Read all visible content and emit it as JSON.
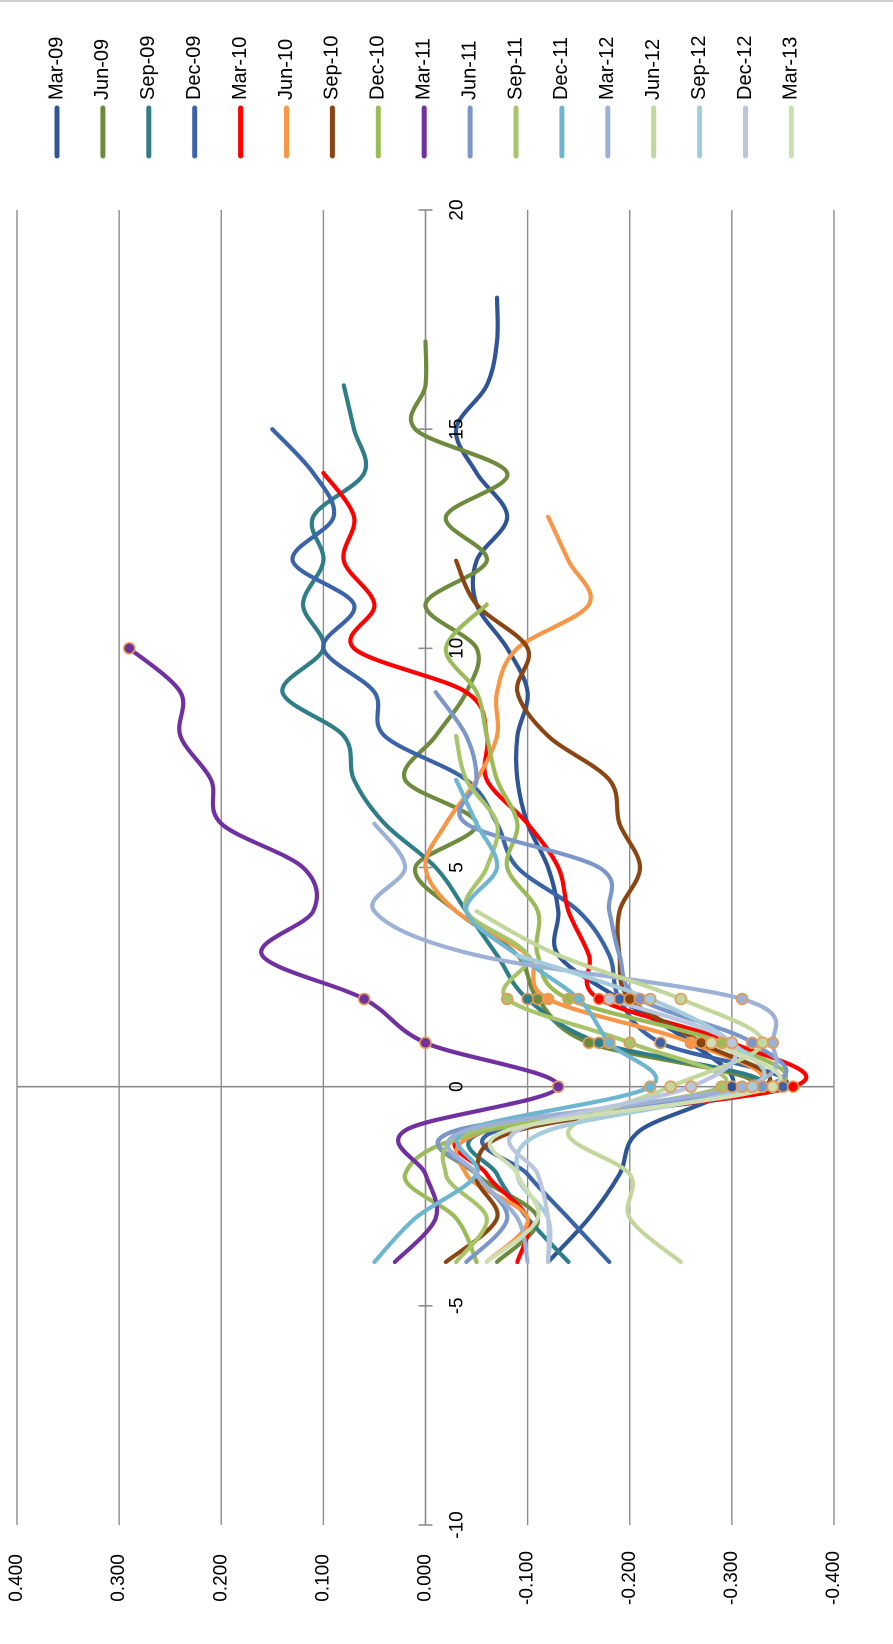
{
  "chart_data": {
    "type": "line",
    "orientation": "rotated-90-clockwise",
    "title": "",
    "xlabel": "",
    "ylabel": "",
    "xlim": [
      -10,
      20
    ],
    "ylim": [
      -0.4,
      0.4
    ],
    "x_ticks": [
      "-10",
      "-5",
      "0",
      "5",
      "10",
      "15",
      "20"
    ],
    "y_ticks": [
      "0.400",
      "0.300",
      "0.200",
      "0.100",
      "0.000",
      "-0.100",
      "-0.200",
      "-0.300",
      "-0.400"
    ],
    "grid": true,
    "legend_position": "right",
    "series": [
      {
        "name": "Mar-09",
        "color": "#2F5597",
        "x": [
          -4,
          -3,
          -2,
          -1,
          0,
          1,
          2,
          3,
          4,
          5,
          6,
          7,
          8,
          9,
          10,
          11,
          12,
          13,
          14,
          15,
          16,
          17,
          18
        ],
        "y": [
          -0.12,
          -0.16,
          -0.19,
          -0.21,
          -0.3,
          -0.26,
          -0.19,
          -0.13,
          -0.13,
          -0.12,
          -0.1,
          -0.09,
          -0.09,
          -0.1,
          -0.08,
          -0.05,
          -0.05,
          -0.08,
          -0.05,
          -0.03,
          -0.06,
          -0.07,
          -0.07
        ]
      },
      {
        "name": "Jun-09",
        "color": "#6E8B3D",
        "x": [
          -4,
          -3,
          -2,
          -1,
          0,
          1,
          2,
          3,
          4,
          5,
          6,
          7,
          8,
          9,
          10,
          11,
          12,
          13,
          14,
          15,
          16,
          17
        ],
        "y": [
          -0.07,
          -0.11,
          -0.05,
          -0.03,
          -0.32,
          -0.16,
          -0.11,
          -0.09,
          -0.03,
          0.01,
          -0.05,
          0.02,
          -0.01,
          -0.04,
          -0.05,
          0.0,
          -0.06,
          -0.02,
          -0.08,
          0.01,
          0.0,
          0.0
        ]
      },
      {
        "name": "Sep-09",
        "color": "#2E7D87",
        "x": [
          -4,
          -3,
          -2,
          -1,
          0,
          1,
          2,
          3,
          4,
          5,
          6,
          7,
          8,
          9,
          10,
          11,
          12,
          13,
          14,
          15,
          16
        ],
        "y": [
          -0.14,
          -0.1,
          -0.07,
          -0.06,
          -0.33,
          -0.17,
          -0.1,
          -0.07,
          -0.04,
          -0.01,
          0.04,
          0.07,
          0.08,
          0.14,
          0.1,
          0.12,
          0.1,
          0.11,
          0.06,
          0.07,
          0.08
        ]
      },
      {
        "name": "Dec-09",
        "color": "#3B64A8",
        "x": [
          -4,
          -3,
          -2,
          -1,
          0,
          1,
          2,
          3,
          4,
          5,
          6,
          7,
          8,
          9,
          10,
          11,
          12,
          13,
          14,
          15
        ],
        "y": [
          -0.18,
          -0.14,
          -0.1,
          -0.07,
          -0.35,
          -0.23,
          -0.19,
          -0.18,
          -0.15,
          -0.09,
          -0.07,
          -0.04,
          0.04,
          0.05,
          0.1,
          0.07,
          0.13,
          0.09,
          0.11,
          0.15
        ]
      },
      {
        "name": "Mar-10",
        "color": "#FF0000",
        "x": [
          -4,
          -3,
          -2,
          -1,
          0,
          1,
          2,
          3,
          4,
          5,
          6,
          7,
          8,
          9,
          10,
          11,
          12,
          13,
          14
        ],
        "y": [
          -0.09,
          -0.1,
          -0.06,
          -0.05,
          -0.36,
          -0.3,
          -0.17,
          -0.16,
          -0.14,
          -0.13,
          -0.1,
          -0.06,
          -0.06,
          -0.04,
          0.07,
          0.05,
          0.08,
          0.07,
          0.1
        ]
      },
      {
        "name": "Jun-10",
        "color": "#F79646",
        "x": [
          -4,
          -3,
          -2,
          -1,
          0,
          1,
          2,
          3,
          4,
          5,
          6,
          7,
          8,
          9,
          10,
          11,
          12,
          13
        ],
        "y": [
          -0.06,
          -0.1,
          -0.04,
          -0.06,
          -0.32,
          -0.26,
          -0.12,
          -0.1,
          -0.03,
          0.0,
          -0.02,
          -0.05,
          -0.07,
          -0.07,
          -0.09,
          -0.16,
          -0.14,
          -0.12
        ]
      },
      {
        "name": "Sep-10",
        "color": "#8B4513",
        "x": [
          -4,
          -3,
          -2,
          -1,
          0,
          1,
          2,
          3,
          4,
          5,
          6,
          7,
          8,
          9,
          10,
          11,
          12
        ],
        "y": [
          -0.02,
          -0.07,
          -0.05,
          -0.09,
          -0.33,
          -0.27,
          -0.2,
          -0.19,
          -0.19,
          -0.21,
          -0.19,
          -0.18,
          -0.12,
          -0.09,
          -0.1,
          -0.05,
          -0.03
        ]
      },
      {
        "name": "Dec-10",
        "color": "#9BBB59",
        "x": [
          -4,
          -3,
          -2,
          -1,
          0,
          1,
          2,
          3,
          4,
          5,
          6,
          7,
          8,
          9,
          10,
          11
        ],
        "y": [
          -0.05,
          -0.03,
          0.02,
          -0.06,
          -0.34,
          -0.29,
          -0.14,
          -0.11,
          -0.11,
          -0.08,
          -0.09,
          -0.07,
          -0.06,
          -0.05,
          -0.02,
          -0.06
        ]
      },
      {
        "name": "Mar-11",
        "color": "#7030A0",
        "x": [
          -4,
          -3,
          -2,
          -1,
          0,
          1,
          2,
          3,
          4,
          5,
          6,
          7,
          8,
          9,
          10
        ],
        "y": [
          0.03,
          -0.01,
          0.0,
          0.02,
          -0.13,
          0.0,
          0.06,
          0.16,
          0.11,
          0.12,
          0.2,
          0.21,
          0.24,
          0.24,
          0.29
        ]
      },
      {
        "name": "Jun-11",
        "color": "#7B96C8",
        "x": [
          -4,
          -3,
          -2,
          -1,
          0,
          1,
          2,
          3,
          4,
          5,
          6,
          7,
          8,
          9
        ],
        "y": [
          -0.04,
          -0.08,
          -0.05,
          -0.03,
          -0.33,
          -0.32,
          -0.21,
          -0.19,
          -0.18,
          -0.17,
          -0.04,
          -0.05,
          -0.04,
          -0.01
        ]
      },
      {
        "name": "Sep-11",
        "color": "#A8C46A",
        "x": [
          -4,
          -3,
          -2,
          -1,
          0,
          1,
          2,
          3,
          4,
          5,
          6,
          7,
          8
        ],
        "y": [
          -0.03,
          -0.06,
          -0.02,
          -0.05,
          -0.29,
          -0.2,
          -0.08,
          -0.1,
          -0.04,
          -0.06,
          -0.07,
          -0.04,
          -0.03
        ]
      },
      {
        "name": "Dec-11",
        "color": "#6EB5D0",
        "x": [
          -4,
          -3,
          -2,
          -1,
          0,
          1,
          2,
          3,
          4,
          5,
          6,
          7
        ],
        "y": [
          0.05,
          0.01,
          -0.05,
          -0.04,
          -0.22,
          -0.18,
          -0.15,
          -0.09,
          -0.04,
          -0.07,
          -0.05,
          -0.03
        ]
      },
      {
        "name": "Mar-12",
        "color": "#9DB0D6",
        "x": [
          -4,
          -3,
          -2,
          -1,
          0,
          1,
          2,
          3,
          4,
          5,
          6
        ],
        "y": [
          -0.1,
          -0.09,
          -0.05,
          -0.04,
          -0.31,
          -0.34,
          -0.31,
          -0.05,
          0.05,
          0.02,
          0.05
        ]
      },
      {
        "name": "Jun-12",
        "color": "#C3D69B",
        "x": [
          -4,
          -3,
          -2,
          -1,
          0,
          1,
          2,
          3,
          4
        ],
        "y": [
          -0.25,
          -0.2,
          -0.2,
          -0.14,
          -0.24,
          -0.33,
          -0.25,
          -0.13,
          -0.05
        ]
      },
      {
        "name": "Sep-12",
        "color": "#A5CCDA",
        "x": [
          -4,
          -3,
          -2,
          -1,
          0,
          1,
          2,
          3
        ],
        "y": [
          -0.12,
          -0.12,
          -0.09,
          -0.12,
          -0.32,
          -0.3,
          -0.22,
          -0.09
        ]
      },
      {
        "name": "Dec-12",
        "color": "#BAC6DE",
        "x": [
          -4,
          -3,
          -2,
          -1,
          0,
          1,
          2
        ],
        "y": [
          -0.12,
          -0.12,
          -0.11,
          -0.09,
          -0.26,
          -0.3,
          -0.18
        ]
      },
      {
        "name": "Mar-13",
        "color": "#CFDDB2",
        "x": [
          -4,
          -3,
          -2,
          -1,
          0,
          1
        ],
        "y": [
          -0.06,
          -0.11,
          -0.09,
          -0.08,
          -0.34,
          -0.28
        ]
      }
    ]
  }
}
